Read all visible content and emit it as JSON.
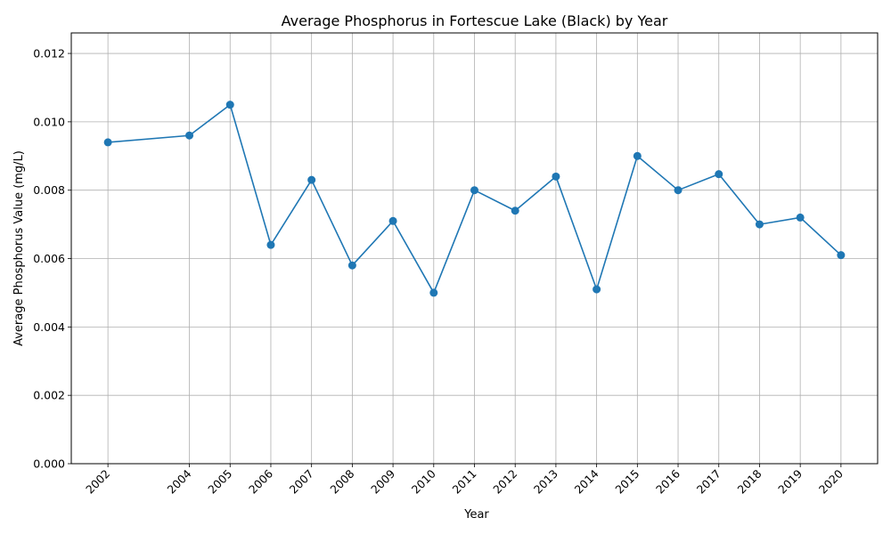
{
  "chart_data": {
    "type": "line",
    "title": "Average Phosphorus in Fortescue Lake (Black) by Year",
    "xlabel": "Year",
    "ylabel": "Average Phosphorus Value (mg/L)",
    "x": [
      2002,
      2004,
      2005,
      2006,
      2007,
      2008,
      2009,
      2010,
      2011,
      2012,
      2013,
      2014,
      2015,
      2016,
      2017,
      2018,
      2019,
      2020
    ],
    "series": [
      {
        "values": [
          0.0094,
          0.0096,
          0.0105,
          0.0064,
          0.0083,
          0.0058,
          0.0071,
          0.005,
          0.008,
          0.0074,
          0.0084,
          0.0051,
          0.009,
          0.008,
          0.00847,
          0.007,
          0.0072,
          0.0061
        ],
        "color": "#1f77b4"
      }
    ],
    "xlim": [
      2001.1,
      2020.9
    ],
    "ylim": [
      0,
      0.0126
    ],
    "yticks": [
      0.0,
      0.002,
      0.004,
      0.006,
      0.008,
      0.01,
      0.012
    ],
    "ytick_labels": [
      "0.000",
      "0.002",
      "0.004",
      "0.006",
      "0.008",
      "0.010",
      "0.012"
    ],
    "xtick_labels": [
      "2002",
      "2004",
      "2005",
      "2006",
      "2007",
      "2008",
      "2009",
      "2010",
      "2011",
      "2012",
      "2013",
      "2014",
      "2015",
      "2016",
      "2017",
      "2018",
      "2019",
      "2020"
    ],
    "grid": true,
    "marker": "circle"
  }
}
